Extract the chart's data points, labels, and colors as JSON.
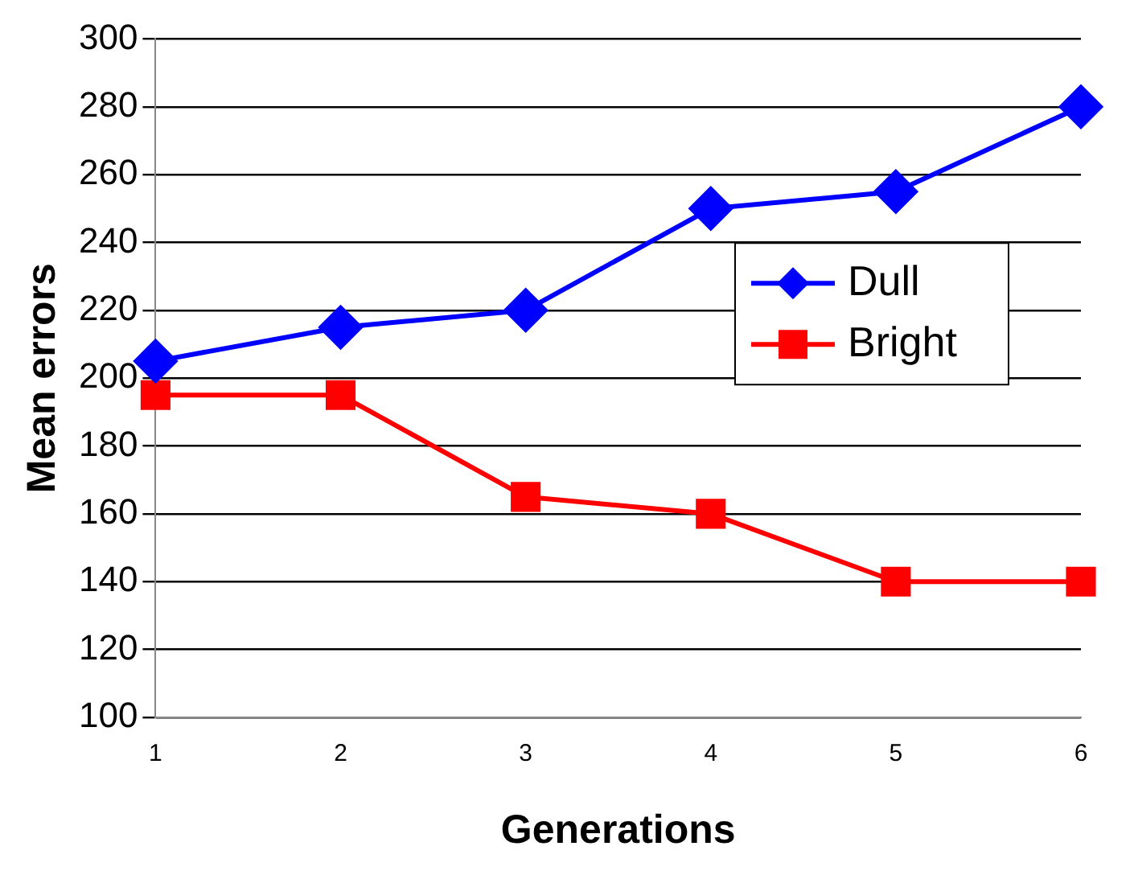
{
  "chart_data": {
    "type": "line",
    "xlabel": "Generations",
    "ylabel": "Mean errors",
    "categories": [
      "1",
      "2",
      "3",
      "4",
      "5",
      "6"
    ],
    "series": [
      {
        "name": "Dull",
        "color": "#0000ff",
        "marker": "diamond",
        "values": [
          205,
          215,
          220,
          250,
          255,
          280
        ]
      },
      {
        "name": "Bright",
        "color": "#ff0000",
        "marker": "square",
        "values": [
          195,
          195,
          165,
          160,
          140,
          140
        ]
      }
    ],
    "ylim": [
      100,
      300
    ],
    "yticks": [
      100,
      120,
      140,
      160,
      180,
      200,
      220,
      240,
      260,
      280,
      300
    ],
    "grid": "y",
    "legend": "right"
  }
}
